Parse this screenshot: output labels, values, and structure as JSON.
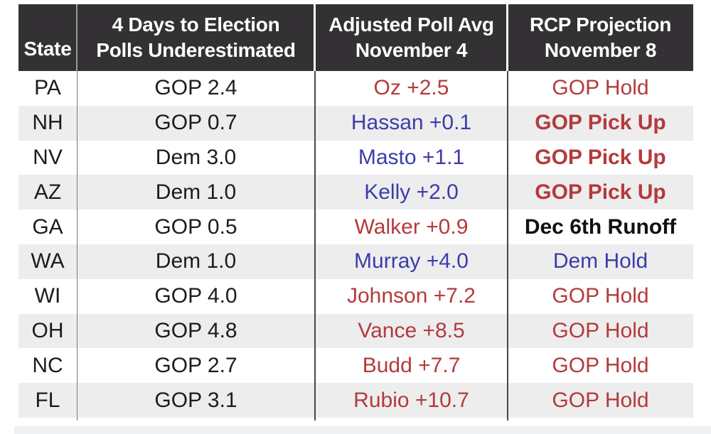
{
  "colors": {
    "header-bg": "#333133",
    "stripe": "#ededed",
    "ink": "#1c1c1c",
    "dark": "#111111",
    "red": "#b43a3c",
    "blue": "#3c3cac",
    "strip": "#eef1f1"
  },
  "table": {
    "header": {
      "state": "State",
      "col2_line1": "4 Days to Election",
      "col2_line2": "Polls Underestimated",
      "col3_line1": "Adjusted Poll Avg",
      "col3_line2": "November 4",
      "col4_line1": "RCP Projection",
      "col4_line2": "November 8"
    }
  },
  "chart_data": {
    "type": "table",
    "columns": [
      "State",
      "4 Days to Election Polls Underestimated",
      "Adjusted Poll Avg November 4",
      "RCP Projection November 8"
    ],
    "rows": [
      {
        "state": "PA",
        "underestimated": "GOP 2.4",
        "poll": "Oz +2.5",
        "poll_tone": "red",
        "projection": "GOP Hold",
        "projection_tone": "red"
      },
      {
        "state": "NH",
        "underestimated": "GOP 0.7",
        "poll": "Hassan +0.1",
        "poll_tone": "blue",
        "projection": "GOP Pick Up",
        "projection_tone": "red bold"
      },
      {
        "state": "NV",
        "underestimated": "Dem 3.0",
        "poll": "Masto +1.1",
        "poll_tone": "blue",
        "projection": "GOP Pick Up",
        "projection_tone": "red bold"
      },
      {
        "state": "AZ",
        "underestimated": "Dem 1.0",
        "poll": "Kelly +2.0",
        "poll_tone": "blue",
        "projection": "GOP Pick Up",
        "projection_tone": "red bold"
      },
      {
        "state": "GA",
        "underestimated": "GOP 0.5",
        "poll": "Walker +0.9",
        "poll_tone": "red",
        "projection": "Dec 6th Runoff",
        "projection_tone": "dark bold"
      },
      {
        "state": "WA",
        "underestimated": "Dem 1.0",
        "poll": "Murray +4.0",
        "poll_tone": "blue",
        "projection": "Dem Hold",
        "projection_tone": "blue"
      },
      {
        "state": "WI",
        "underestimated": "GOP 4.0",
        "poll": "Johnson +7.2",
        "poll_tone": "red",
        "projection": "GOP Hold",
        "projection_tone": "red"
      },
      {
        "state": "OH",
        "underestimated": "GOP 4.8",
        "poll": "Vance +8.5",
        "poll_tone": "red",
        "projection": "GOP Hold",
        "projection_tone": "red"
      },
      {
        "state": "NC",
        "underestimated": "GOP 2.7",
        "poll": "Budd +7.7",
        "poll_tone": "red",
        "projection": "GOP Hold",
        "projection_tone": "red"
      },
      {
        "state": "FL",
        "underestimated": "GOP 3.1",
        "poll": "Rubio +10.7",
        "poll_tone": "red",
        "projection": "GOP Hold",
        "projection_tone": "red"
      }
    ]
  }
}
